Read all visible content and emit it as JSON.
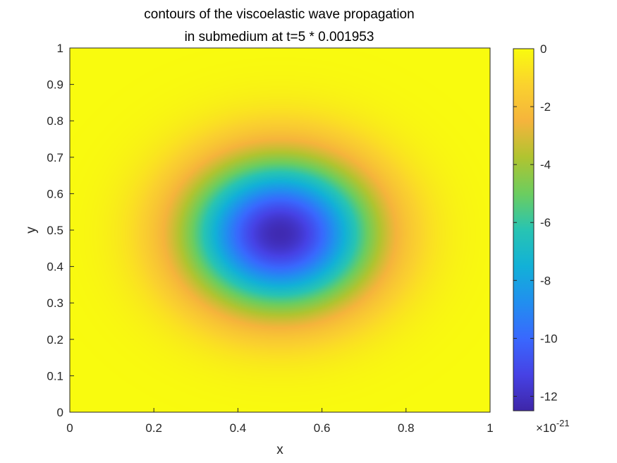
{
  "chart_data": {
    "type": "heatmap",
    "title": [
      "contours of the viscoelastic wave propagation",
      "in submedium at t=5 * 0.001953"
    ],
    "xlabel": "x",
    "ylabel": "y",
    "xlim": [
      0,
      1
    ],
    "ylim": [
      0,
      1
    ],
    "xticks": [
      "0",
      "0.2",
      "0.4",
      "0.6",
      "0.8",
      "1"
    ],
    "yticks": [
      "0",
      "0.1",
      "0.2",
      "0.3",
      "0.4",
      "0.5",
      "0.6",
      "0.7",
      "0.8",
      "0.9",
      "1"
    ],
    "colorbar": {
      "colormap": "parula",
      "range": [
        -12.5,
        0
      ],
      "ticks": [
        "-12",
        "-10",
        "-8",
        "-6",
        "-4",
        "-2",
        "0"
      ],
      "exponent_label": "×10",
      "exponent": "-21"
    },
    "field": {
      "description_center": [
        0.5,
        0.49
      ],
      "min_value": -12.3,
      "max_value": 0,
      "sigma_x": 0.155,
      "sigma_y": 0.145
    }
  }
}
